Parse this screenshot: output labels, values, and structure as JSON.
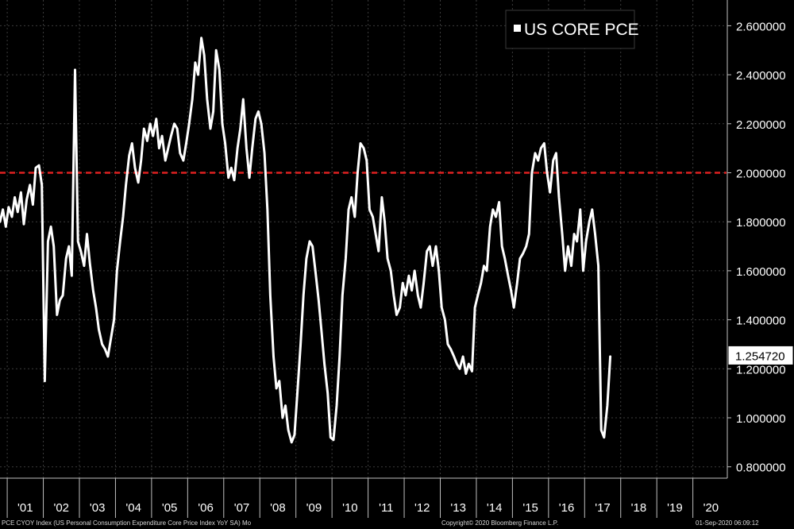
{
  "chart_data": {
    "type": "line",
    "title": "",
    "legend": {
      "label": "US CORE PCE",
      "position": "top-right"
    },
    "xlabel": "",
    "ylabel": "",
    "ylim": [
      0.75,
      2.7
    ],
    "xlim": [
      2001.0,
      2021.0
    ],
    "y_ticks": [
      {
        "value": 0.8,
        "label": "0.800000"
      },
      {
        "value": 1.0,
        "label": "1.000000"
      },
      {
        "value": 1.2,
        "label": "1.200000"
      },
      {
        "value": 1.4,
        "label": "1.400000"
      },
      {
        "value": 1.6,
        "label": "1.600000"
      },
      {
        "value": 1.8,
        "label": "1.800000"
      },
      {
        "value": 2.0,
        "label": "2.000000"
      },
      {
        "value": 2.2,
        "label": "2.200000"
      },
      {
        "value": 2.4,
        "label": "2.400000"
      },
      {
        "value": 2.6,
        "label": "2.600000"
      }
    ],
    "x_ticks": [
      {
        "value": 2001.5,
        "label": "'01"
      },
      {
        "value": 2002.5,
        "label": "'02"
      },
      {
        "value": 2003.5,
        "label": "'03"
      },
      {
        "value": 2004.5,
        "label": "'04"
      },
      {
        "value": 2005.5,
        "label": "'05"
      },
      {
        "value": 2006.5,
        "label": "'06"
      },
      {
        "value": 2007.5,
        "label": "'07"
      },
      {
        "value": 2008.5,
        "label": "'08"
      },
      {
        "value": 2009.5,
        "label": "'09"
      },
      {
        "value": 2010.5,
        "label": "'10"
      },
      {
        "value": 2011.5,
        "label": "'11"
      },
      {
        "value": 2012.5,
        "label": "'12"
      },
      {
        "value": 2013.5,
        "label": "'13"
      },
      {
        "value": 2014.5,
        "label": "'14"
      },
      {
        "value": 2015.5,
        "label": "'15"
      },
      {
        "value": 2016.5,
        "label": "'16"
      },
      {
        "value": 2017.5,
        "label": "'17"
      },
      {
        "value": 2018.5,
        "label": "'18"
      },
      {
        "value": 2019.5,
        "label": "'19"
      },
      {
        "value": 2020.5,
        "label": "'20"
      }
    ],
    "reference_line": {
      "value": 2.0,
      "style": "dashed",
      "color": "#e02020"
    },
    "last_value": {
      "value": 1.25472,
      "label": "1.254720"
    },
    "series": [
      {
        "name": "US CORE PCE",
        "color": "#ffffff",
        "points": [
          [
            2000.8,
            1.8
          ],
          [
            2000.88,
            1.85
          ],
          [
            2000.96,
            1.78
          ],
          [
            2001.04,
            1.86
          ],
          [
            2001.13,
            1.82
          ],
          [
            2001.21,
            1.9
          ],
          [
            2001.29,
            1.84
          ],
          [
            2001.38,
            1.92
          ],
          [
            2001.46,
            1.79
          ],
          [
            2001.54,
            1.89
          ],
          [
            2001.63,
            1.95
          ],
          [
            2001.71,
            1.87
          ],
          [
            2001.79,
            2.02
          ],
          [
            2001.88,
            2.03
          ],
          [
            2001.96,
            1.95
          ],
          [
            2002.04,
            1.15
          ],
          [
            2002.13,
            1.72
          ],
          [
            2002.21,
            1.78
          ],
          [
            2002.29,
            1.7
          ],
          [
            2002.38,
            1.42
          ],
          [
            2002.46,
            1.48
          ],
          [
            2002.54,
            1.5
          ],
          [
            2002.63,
            1.65
          ],
          [
            2002.71,
            1.7
          ],
          [
            2002.79,
            1.58
          ],
          [
            2002.88,
            2.42
          ],
          [
            2002.96,
            1.72
          ],
          [
            2003.04,
            1.68
          ],
          [
            2003.13,
            1.62
          ],
          [
            2003.21,
            1.75
          ],
          [
            2003.29,
            1.63
          ],
          [
            2003.38,
            1.52
          ],
          [
            2003.46,
            1.45
          ],
          [
            2003.54,
            1.36
          ],
          [
            2003.63,
            1.3
          ],
          [
            2003.71,
            1.28
          ],
          [
            2003.79,
            1.25
          ],
          [
            2003.88,
            1.33
          ],
          [
            2003.96,
            1.4
          ],
          [
            2004.04,
            1.6
          ],
          [
            2004.13,
            1.72
          ],
          [
            2004.21,
            1.82
          ],
          [
            2004.29,
            1.95
          ],
          [
            2004.38,
            2.07
          ],
          [
            2004.46,
            2.12
          ],
          [
            2004.54,
            2.02
          ],
          [
            2004.63,
            1.96
          ],
          [
            2004.71,
            2.05
          ],
          [
            2004.79,
            2.18
          ],
          [
            2004.88,
            2.13
          ],
          [
            2004.96,
            2.2
          ],
          [
            2005.04,
            2.15
          ],
          [
            2005.13,
            2.22
          ],
          [
            2005.21,
            2.1
          ],
          [
            2005.29,
            2.15
          ],
          [
            2005.38,
            2.05
          ],
          [
            2005.46,
            2.1
          ],
          [
            2005.54,
            2.15
          ],
          [
            2005.63,
            2.2
          ],
          [
            2005.71,
            2.18
          ],
          [
            2005.79,
            2.08
          ],
          [
            2005.88,
            2.05
          ],
          [
            2005.96,
            2.12
          ],
          [
            2006.04,
            2.2
          ],
          [
            2006.13,
            2.3
          ],
          [
            2006.21,
            2.45
          ],
          [
            2006.29,
            2.4
          ],
          [
            2006.38,
            2.55
          ],
          [
            2006.46,
            2.48
          ],
          [
            2006.54,
            2.3
          ],
          [
            2006.63,
            2.18
          ],
          [
            2006.71,
            2.25
          ],
          [
            2006.79,
            2.5
          ],
          [
            2006.88,
            2.42
          ],
          [
            2006.96,
            2.2
          ],
          [
            2007.04,
            2.12
          ],
          [
            2007.13,
            1.98
          ],
          [
            2007.21,
            2.02
          ],
          [
            2007.29,
            1.97
          ],
          [
            2007.38,
            2.1
          ],
          [
            2007.46,
            2.18
          ],
          [
            2007.54,
            2.3
          ],
          [
            2007.63,
            2.1
          ],
          [
            2007.71,
            1.98
          ],
          [
            2007.79,
            2.1
          ],
          [
            2007.88,
            2.22
          ],
          [
            2007.96,
            2.25
          ],
          [
            2008.04,
            2.2
          ],
          [
            2008.13,
            2.08
          ],
          [
            2008.21,
            1.85
          ],
          [
            2008.29,
            1.5
          ],
          [
            2008.38,
            1.25
          ],
          [
            2008.46,
            1.12
          ],
          [
            2008.54,
            1.15
          ],
          [
            2008.63,
            1.0
          ],
          [
            2008.71,
            1.05
          ],
          [
            2008.79,
            0.95
          ],
          [
            2008.88,
            0.9
          ],
          [
            2008.96,
            0.93
          ],
          [
            2009.04,
            1.1
          ],
          [
            2009.13,
            1.3
          ],
          [
            2009.21,
            1.5
          ],
          [
            2009.29,
            1.65
          ],
          [
            2009.38,
            1.72
          ],
          [
            2009.46,
            1.7
          ],
          [
            2009.54,
            1.6
          ],
          [
            2009.63,
            1.48
          ],
          [
            2009.71,
            1.35
          ],
          [
            2009.79,
            1.22
          ],
          [
            2009.88,
            1.1
          ],
          [
            2009.96,
            0.92
          ],
          [
            2010.04,
            0.91
          ],
          [
            2010.13,
            1.05
          ],
          [
            2010.21,
            1.25
          ],
          [
            2010.29,
            1.5
          ],
          [
            2010.38,
            1.65
          ],
          [
            2010.46,
            1.85
          ],
          [
            2010.54,
            1.9
          ],
          [
            2010.63,
            1.82
          ],
          [
            2010.71,
            2.0
          ],
          [
            2010.79,
            2.12
          ],
          [
            2010.88,
            2.1
          ],
          [
            2010.96,
            2.05
          ],
          [
            2011.04,
            1.85
          ],
          [
            2011.13,
            1.82
          ],
          [
            2011.21,
            1.75
          ],
          [
            2011.29,
            1.68
          ],
          [
            2011.38,
            1.9
          ],
          [
            2011.46,
            1.8
          ],
          [
            2011.54,
            1.65
          ],
          [
            2011.63,
            1.6
          ],
          [
            2011.71,
            1.5
          ],
          [
            2011.79,
            1.42
          ],
          [
            2011.88,
            1.45
          ],
          [
            2011.96,
            1.55
          ],
          [
            2012.04,
            1.5
          ],
          [
            2012.13,
            1.58
          ],
          [
            2012.21,
            1.52
          ],
          [
            2012.29,
            1.6
          ],
          [
            2012.38,
            1.5
          ],
          [
            2012.46,
            1.45
          ],
          [
            2012.54,
            1.55
          ],
          [
            2012.63,
            1.68
          ],
          [
            2012.71,
            1.7
          ],
          [
            2012.79,
            1.62
          ],
          [
            2012.88,
            1.7
          ],
          [
            2012.96,
            1.6
          ],
          [
            2013.04,
            1.45
          ],
          [
            2013.13,
            1.4
          ],
          [
            2013.21,
            1.3
          ],
          [
            2013.29,
            1.28
          ],
          [
            2013.38,
            1.25
          ],
          [
            2013.46,
            1.22
          ],
          [
            2013.54,
            1.2
          ],
          [
            2013.63,
            1.25
          ],
          [
            2013.71,
            1.18
          ],
          [
            2013.79,
            1.22
          ],
          [
            2013.88,
            1.19
          ],
          [
            2013.96,
            1.45
          ],
          [
            2014.04,
            1.5
          ],
          [
            2014.13,
            1.55
          ],
          [
            2014.21,
            1.62
          ],
          [
            2014.29,
            1.6
          ],
          [
            2014.38,
            1.78
          ],
          [
            2014.46,
            1.85
          ],
          [
            2014.54,
            1.82
          ],
          [
            2014.63,
            1.88
          ],
          [
            2014.71,
            1.7
          ],
          [
            2014.79,
            1.65
          ],
          [
            2014.88,
            1.58
          ],
          [
            2014.96,
            1.52
          ],
          [
            2015.04,
            1.45
          ],
          [
            2015.13,
            1.55
          ],
          [
            2015.21,
            1.65
          ],
          [
            2015.29,
            1.67
          ],
          [
            2015.38,
            1.7
          ],
          [
            2015.46,
            1.75
          ],
          [
            2015.54,
            2.0
          ],
          [
            2015.63,
            2.08
          ],
          [
            2015.71,
            2.05
          ],
          [
            2015.79,
            2.1
          ],
          [
            2015.88,
            2.12
          ],
          [
            2015.96,
            2.0
          ],
          [
            2016.04,
            1.92
          ],
          [
            2016.13,
            2.05
          ],
          [
            2016.21,
            2.08
          ],
          [
            2016.29,
            1.9
          ],
          [
            2016.38,
            1.75
          ],
          [
            2016.46,
            1.6
          ],
          [
            2016.54,
            1.7
          ],
          [
            2016.63,
            1.62
          ],
          [
            2016.71,
            1.75
          ],
          [
            2016.79,
            1.72
          ],
          [
            2016.88,
            1.85
          ],
          [
            2016.96,
            1.6
          ],
          [
            2017.04,
            1.72
          ],
          [
            2017.13,
            1.8
          ],
          [
            2017.21,
            1.85
          ],
          [
            2017.29,
            1.75
          ],
          [
            2017.38,
            1.62
          ],
          [
            2017.46,
            0.95
          ],
          [
            2017.54,
            0.92
          ],
          [
            2017.63,
            1.05
          ],
          [
            2017.71,
            1.25
          ]
        ]
      }
    ]
  },
  "footer": {
    "source": "PCE CYOY Index (US Personal Consumption Expenditure Core Price Index YoY SA)  Mo",
    "copyright": "Copyright© 2020 Bloomberg Finance L.P.",
    "timestamp": "01-Sep-2020 06:09:12"
  }
}
